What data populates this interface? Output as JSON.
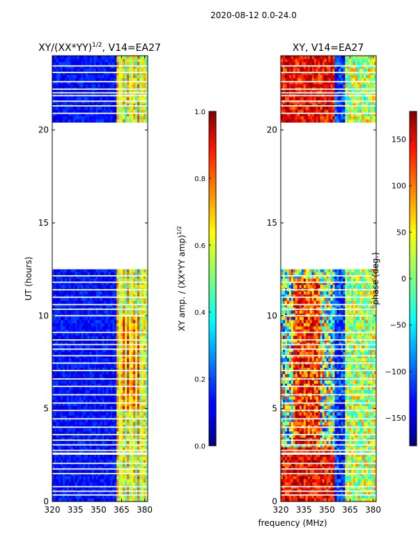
{
  "figure_title": "2020-08-12 0.0-24.0",
  "chart_data": [
    {
      "type": "heatmap",
      "title": "XY/(XX*YY)",
      "title_superscript": "1/2",
      "title_suffix": ", V14=EA27",
      "xlabel": "",
      "ylabel": "UT (hours)",
      "xlim": [
        320,
        382
      ],
      "ylim": [
        0,
        24
      ],
      "x_ticks": [
        320,
        335,
        350,
        365,
        380
      ],
      "y_ticks": [
        0,
        5,
        10,
        15,
        20
      ],
      "data_gaps_ut": [
        [
          12.5,
          20.4
        ]
      ],
      "band_freq_mhz": [
        362,
        382
      ],
      "colorbar": {
        "label": "XY amp. / (XX*YY amp)",
        "label_superscript": "1/2",
        "range": [
          0.0,
          1.0
        ],
        "ticks": [
          "0.0",
          "0.2",
          "0.4",
          "0.6",
          "0.8",
          "1.0"
        ],
        "tick_values": [
          0.0,
          0.2,
          0.4,
          0.6,
          0.8,
          1.0
        ],
        "colormap": "jet"
      }
    },
    {
      "type": "heatmap",
      "title": "XY, V14=EA27",
      "xlabel": "frequency (MHz)",
      "ylabel": "",
      "xlim": [
        320,
        382
      ],
      "ylim": [
        0,
        24
      ],
      "x_ticks": [
        320,
        335,
        350,
        365,
        380
      ],
      "y_ticks": [
        0,
        5,
        10,
        15,
        20
      ],
      "data_gaps_ut": [
        [
          12.5,
          20.4
        ]
      ],
      "colorbar": {
        "label": "phase (deg.)",
        "range": [
          -180,
          180
        ],
        "ticks": [
          "150",
          "100",
          "50",
          "0",
          "−50",
          "−100",
          "−150"
        ],
        "tick_values": [
          150,
          100,
          50,
          0,
          -50,
          -100,
          -150
        ],
        "colormap": "jet"
      }
    }
  ]
}
